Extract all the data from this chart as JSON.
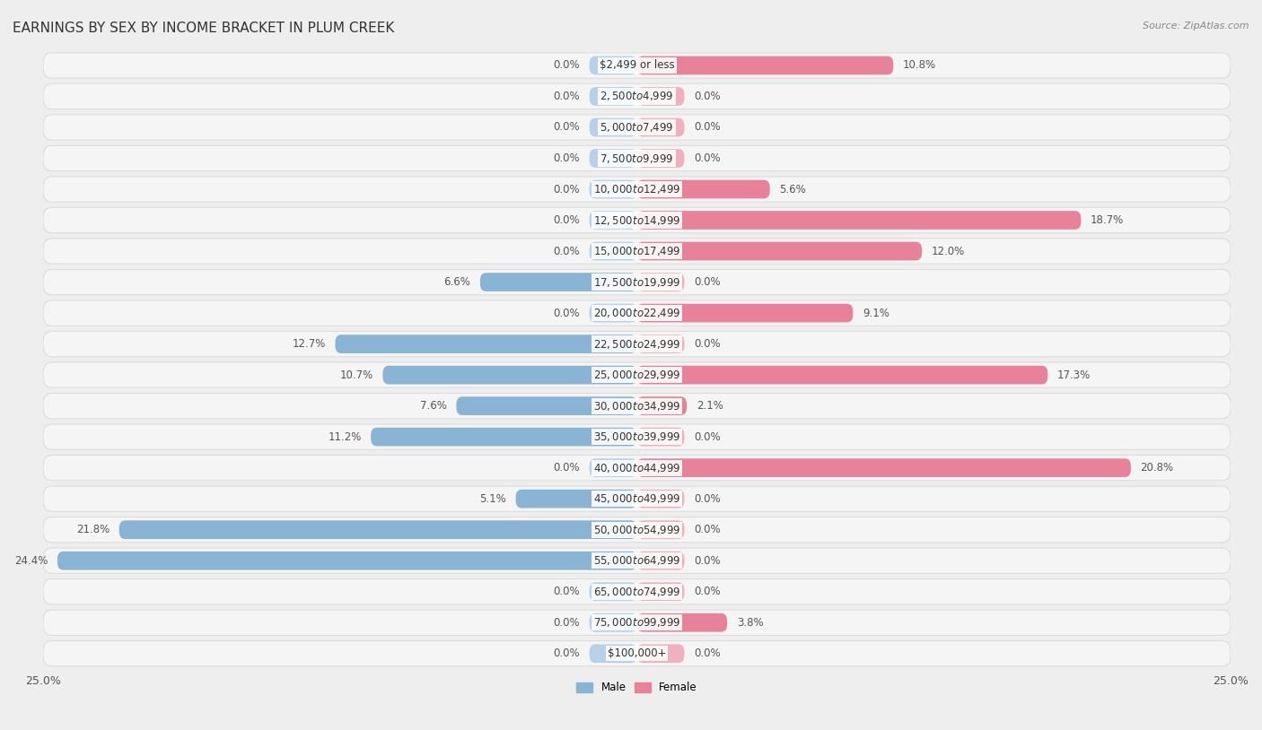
{
  "title": "EARNINGS BY SEX BY INCOME BRACKET IN PLUM CREEK",
  "source": "Source: ZipAtlas.com",
  "categories": [
    "$2,499 or less",
    "$2,500 to $4,999",
    "$5,000 to $7,499",
    "$7,500 to $9,999",
    "$10,000 to $12,499",
    "$12,500 to $14,999",
    "$15,000 to $17,499",
    "$17,500 to $19,999",
    "$20,000 to $22,499",
    "$22,500 to $24,999",
    "$25,000 to $29,999",
    "$30,000 to $34,999",
    "$35,000 to $39,999",
    "$40,000 to $44,999",
    "$45,000 to $49,999",
    "$50,000 to $54,999",
    "$55,000 to $64,999",
    "$65,000 to $74,999",
    "$75,000 to $99,999",
    "$100,000+"
  ],
  "male_values": [
    0.0,
    0.0,
    0.0,
    0.0,
    0.0,
    0.0,
    0.0,
    6.6,
    0.0,
    12.7,
    10.7,
    7.6,
    11.2,
    0.0,
    5.1,
    21.8,
    24.4,
    0.0,
    0.0,
    0.0
  ],
  "female_values": [
    10.8,
    0.0,
    0.0,
    0.0,
    5.6,
    18.7,
    12.0,
    0.0,
    9.1,
    0.0,
    17.3,
    2.1,
    0.0,
    20.8,
    0.0,
    0.0,
    0.0,
    0.0,
    3.8,
    0.0
  ],
  "male_color": "#8ab4d4",
  "female_color": "#e8829a",
  "male_color_light": "#b8d0e8",
  "female_color_light": "#f0b0c0",
  "male_label": "Male",
  "female_label": "Female",
  "xlim": 25.0,
  "bg_color": "#eeeeee",
  "row_color": "#f5f5f5",
  "row_border_color": "#dddddd",
  "title_fontsize": 11,
  "value_fontsize": 8.5,
  "axis_label_fontsize": 9,
  "category_fontsize": 8.5
}
